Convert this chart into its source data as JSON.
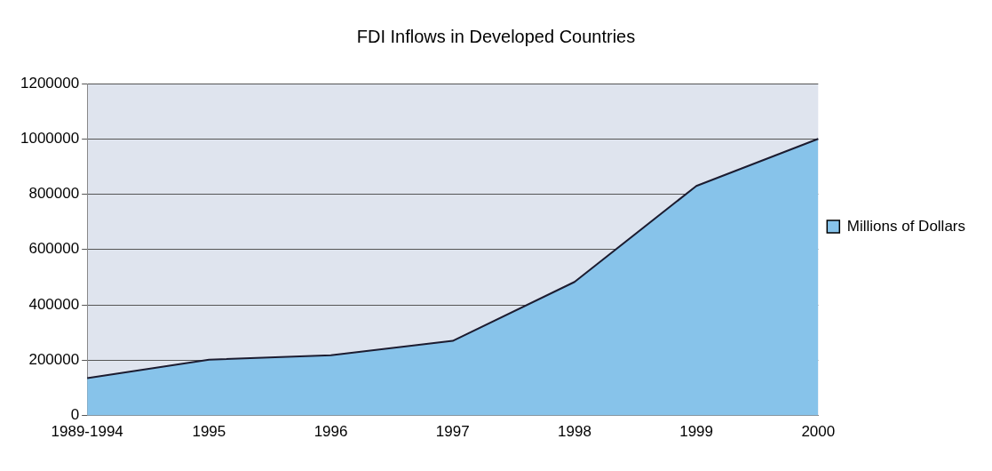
{
  "chart_data": {
    "type": "area",
    "title": "FDI Inflows in Developed Countries",
    "categories": [
      "1989-1994",
      "1995",
      "1996",
      "1997",
      "1998",
      "1999",
      "2000"
    ],
    "series": [
      {
        "name": "Millions of Dollars",
        "color": "#87c3ea",
        "values": [
          135000,
          202000,
          218000,
          270000,
          483000,
          830000,
          1000000
        ]
      }
    ],
    "ylim": [
      0,
      1200000
    ],
    "yticks": [
      0,
      200000,
      400000,
      600000,
      800000,
      1000000,
      1200000
    ],
    "grid": "y",
    "legend": "right"
  }
}
